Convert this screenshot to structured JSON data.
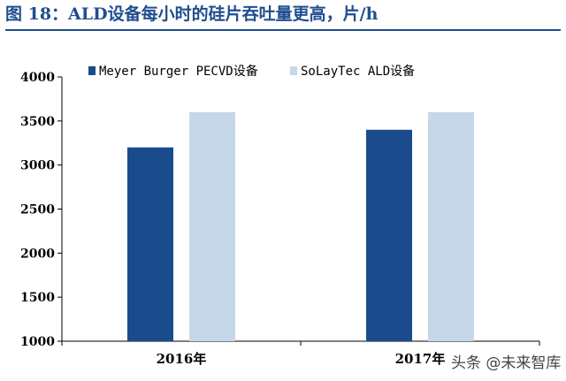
{
  "title": "图 18：ALD设备每小时的硅片吞吐量更高，片/h",
  "watermark": "头条 @未来智库",
  "colors": {
    "title": "#1f4e8f",
    "series1": "#1a4b8c",
    "series2": "#c6d7e9"
  },
  "chart_data": {
    "type": "bar",
    "categories": [
      "2016年",
      "2017年"
    ],
    "series": [
      {
        "name": "Meyer Burger PECVD设备",
        "values": [
          3200,
          3400
        ]
      },
      {
        "name": "SoLayTec ALD设备",
        "values": [
          3600,
          3600
        ]
      }
    ],
    "ylim": [
      1000,
      4000
    ],
    "yticks": [
      1000,
      1500,
      2000,
      2500,
      3000,
      3500,
      4000
    ],
    "grid": false,
    "legend": "top"
  }
}
